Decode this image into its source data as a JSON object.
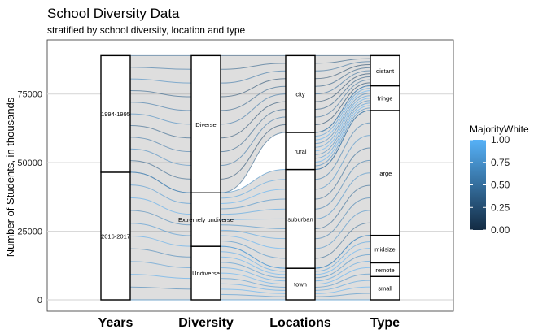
{
  "chart_data": {
    "type": "alluvial",
    "title": "School Diversity Data",
    "subtitle": "stratified by school diversity, location and type",
    "ylabel": "Number of Students, in thousands",
    "xlabel": "",
    "ylim": [
      0,
      90000
    ],
    "yticks": [
      0,
      25000,
      50000,
      75000
    ],
    "grid": true,
    "legend_position": "right",
    "axes": [
      "Years",
      "Diversity",
      "Locations",
      "Type"
    ],
    "strata": [
      {
        "axis": "Years",
        "items": [
          {
            "label": "2016-2017",
            "from": 0,
            "to": 46500
          },
          {
            "label": "1994-1995",
            "from": 46500,
            "to": 89000
          }
        ]
      },
      {
        "axis": "Diversity",
        "items": [
          {
            "label": "Undiverse",
            "from": 0,
            "to": 19500
          },
          {
            "label": "Extremely undiverse",
            "from": 19500,
            "to": 39000
          },
          {
            "label": "Diverse",
            "from": 39000,
            "to": 89000
          }
        ]
      },
      {
        "axis": "Locations",
        "items": [
          {
            "label": "town",
            "from": 0,
            "to": 11500
          },
          {
            "label": "suburban",
            "from": 11500,
            "to": 47500
          },
          {
            "label": "rural",
            "from": 47500,
            "to": 61000
          },
          {
            "label": "city",
            "from": 61000,
            "to": 89000
          }
        ]
      },
      {
        "axis": "Type",
        "items": [
          {
            "label": "small",
            "from": 0,
            "to": 8500
          },
          {
            "label": "remote",
            "from": 8500,
            "to": 13500
          },
          {
            "label": "midsize",
            "from": 13500,
            "to": 23500
          },
          {
            "label": "large",
            "from": 23500,
            "to": 69000
          },
          {
            "label": "fringe",
            "from": 69000,
            "to": 78000
          },
          {
            "label": "distant",
            "from": 78000,
            "to": 89000
          }
        ]
      }
    ],
    "flows": [
      {
        "from": [
          46500,
          89000
        ],
        "to": [
          39000,
          89000
        ],
        "majority_white": 0.55
      },
      {
        "from": [
          0,
          46500
        ],
        "to": [
          0,
          39000
        ],
        "majority_white": 0.8
      },
      {
        "from": [
          39000,
          89000
        ],
        "to": [
          61000,
          89000
        ],
        "majority_white": 0.4
      },
      {
        "from": [
          19500,
          39000
        ],
        "to": [
          11500,
          47500
        ],
        "majority_white": 0.9
      },
      {
        "from": [
          0,
          19500
        ],
        "to": [
          0,
          11500
        ],
        "majority_white": 0.95
      },
      {
        "from": [
          61000,
          89000
        ],
        "to": [
          78000,
          89000
        ],
        "majority_white": 0.35
      },
      {
        "from": [
          47500,
          61000
        ],
        "to": [
          69000,
          78000
        ],
        "majority_white": 0.85
      },
      {
        "from": [
          11500,
          47500
        ],
        "to": [
          23500,
          69000
        ],
        "majority_white": 0.6
      },
      {
        "from": [
          0,
          11500
        ],
        "to": [
          0,
          23500
        ],
        "majority_white": 0.9
      }
    ],
    "legend": {
      "title": "MajorityWhite",
      "ticks": [
        "1.00",
        "0.75",
        "0.50",
        "0.25",
        "0.00"
      ],
      "low_color": "#132B43",
      "high_color": "#56B1F7"
    }
  },
  "colors": {
    "panel_border": "#333333",
    "grid": "#d9d9d9",
    "flow_gray": "#8a8a8a",
    "stratum_fill": "#ffffff",
    "stratum_stroke": "#000000"
  }
}
